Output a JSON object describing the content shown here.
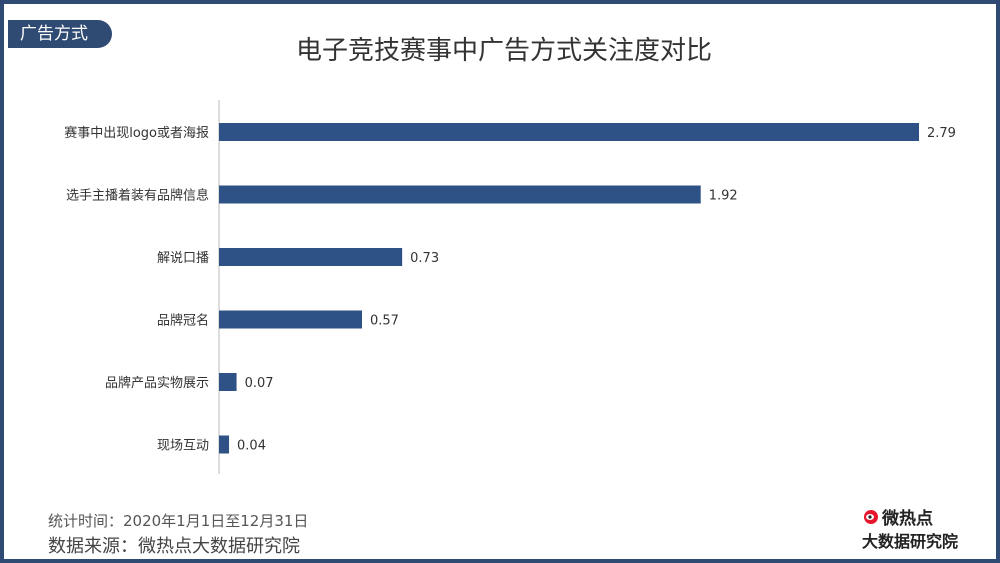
{
  "tag_label": "广告方式",
  "colors": {
    "frame": "#2f4a73",
    "bar": "#2f5286",
    "axis": "#bbbbbb"
  },
  "chart_data": {
    "type": "bar",
    "orientation": "horizontal",
    "title": "电子竞技赛事中广告方式关注度对比",
    "categories": [
      "赛事中出现logo或者海报",
      "选手主播着装有品牌信息",
      "解说口播",
      "品牌冠名",
      "品牌产品实物展示",
      "现场互动"
    ],
    "values": [
      2.79,
      1.92,
      0.73,
      0.57,
      0.07,
      0.04
    ],
    "value_labels": [
      "2.79",
      "1.92",
      "0.73",
      "0.57",
      "0.07",
      "0.04"
    ],
    "xlim": [
      0,
      2.79
    ],
    "grid": false,
    "legend": "none"
  },
  "footer": {
    "period": "统计时间：2020年1月1日至12月31日",
    "source": "数据来源：微热点大数据研究院"
  },
  "logo": {
    "top_text": "微热点",
    "bottom_text": "大数据研究院",
    "icon": "weibo-eye-icon"
  }
}
